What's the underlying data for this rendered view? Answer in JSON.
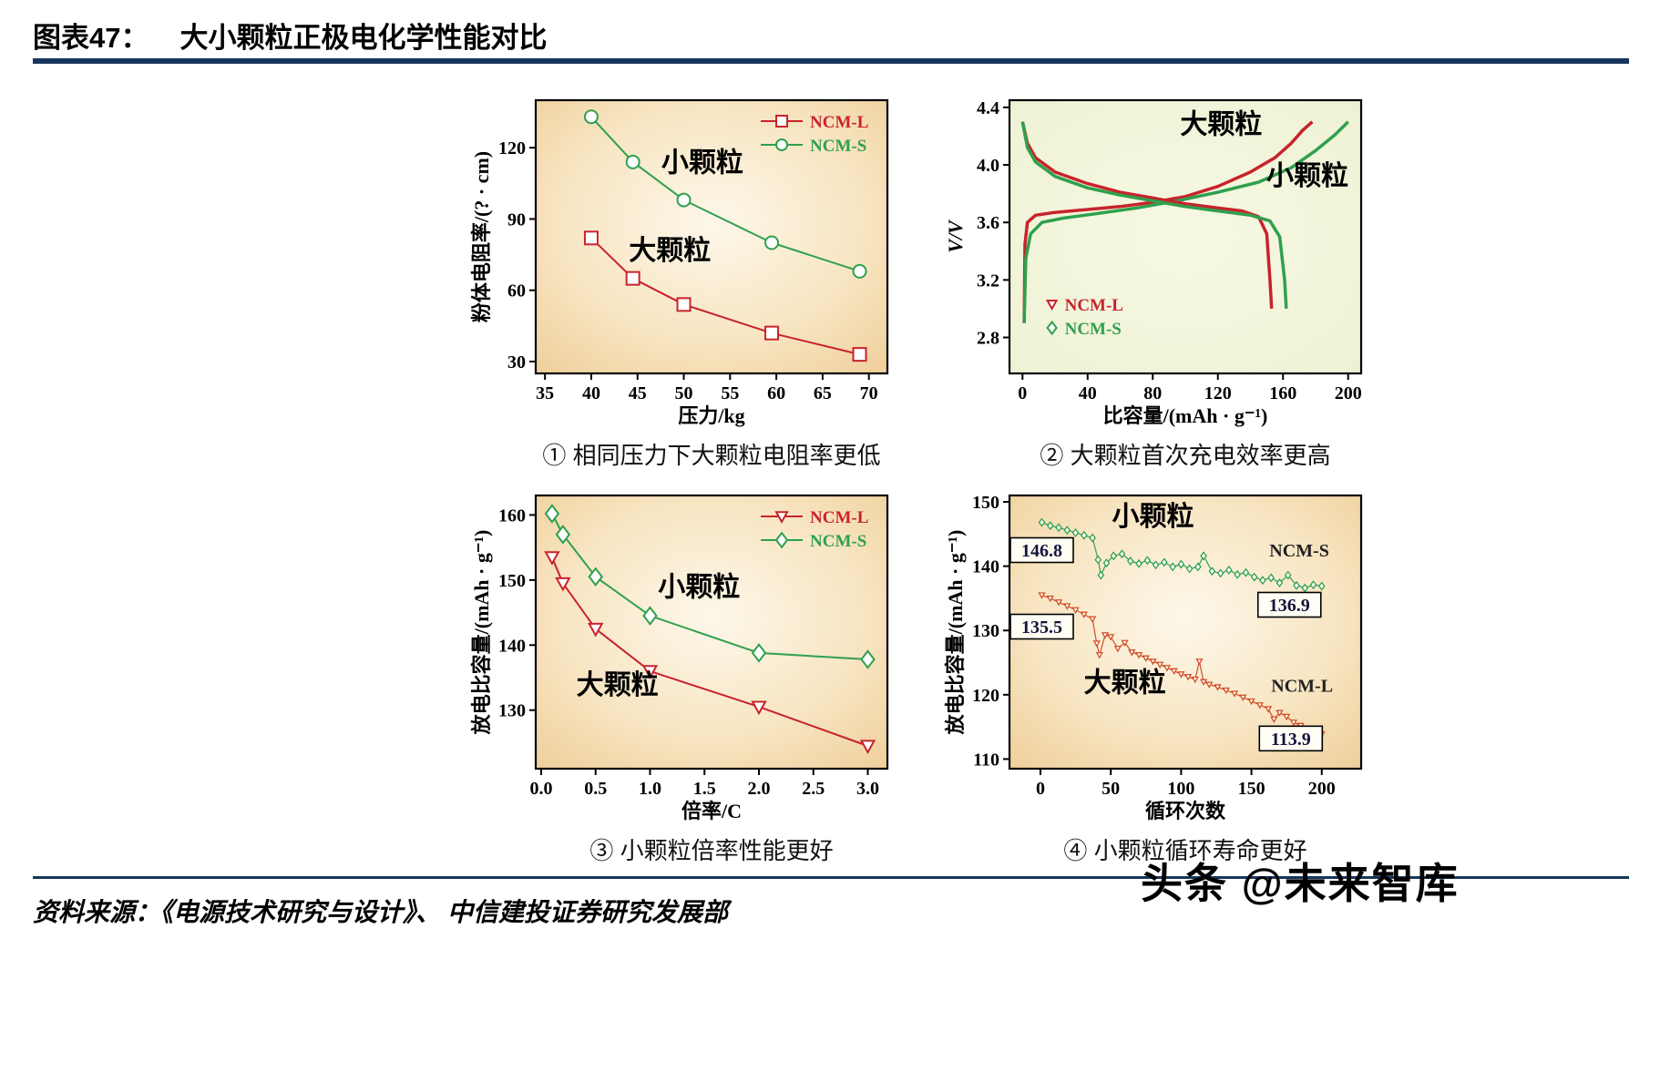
{
  "header": {
    "fig_label": "图表47：",
    "title": "大小颗粒正极电化学性能对比"
  },
  "footer": {
    "source": "资料来源：《电源技术研究与设计》、 中信建投证券研究发展部",
    "watermark_brand": "头条",
    "watermark_handle": "@未来智库"
  },
  "colors": {
    "rule": "#17365d",
    "red": "#c8232c",
    "green": "#2fa04e",
    "orange_red": "#d14f26"
  },
  "chart_data": [
    {
      "type": "line",
      "caption": "① 相同压力下大颗粒电阻率更低",
      "xlabel": "压力/kg",
      "ylabel": "粉体电阻率/(? · cm)",
      "xlim": [
        34,
        72
      ],
      "ylim": [
        25,
        140
      ],
      "xticks": [
        35,
        40,
        45,
        50,
        55,
        60,
        65,
        70
      ],
      "xtick_labels": [
        "35",
        "40",
        "45",
        "50",
        "55",
        "60",
        "65",
        "70"
      ],
      "yticks": [
        30,
        60,
        90,
        120
      ],
      "ytick_labels": [
        "30",
        "60",
        "90",
        "120"
      ],
      "bg": "peach",
      "series": [
        {
          "name": "NCM-L",
          "color": "#c8232c",
          "marker": "square",
          "ms": 7,
          "lw": 2,
          "x": [
            40,
            44.5,
            50,
            59.5,
            69
          ],
          "y": [
            82,
            65,
            54,
            42,
            33
          ]
        },
        {
          "name": "NCM-S",
          "color": "#2fa04e",
          "marker": "circle",
          "ms": 7,
          "lw": 2,
          "x": [
            40,
            44.5,
            50,
            59.5,
            69
          ],
          "y": [
            133,
            114,
            98,
            80,
            68
          ]
        }
      ],
      "annotations": [
        {
          "text": "小颗粒",
          "x": 52,
          "y": 110,
          "size": 30,
          "color": "#000",
          "font": "sans"
        },
        {
          "text": "大颗粒",
          "x": 48.5,
          "y": 73,
          "size": 30,
          "color": "#000",
          "font": "sans"
        }
      ],
      "legend": {
        "fx": 0.64,
        "fy": 0.03,
        "line": true,
        "entries": [
          {
            "label": "NCM-L",
            "color": "#c8232c",
            "marker": "square"
          },
          {
            "label": "NCM-S",
            "color": "#2fa04e",
            "marker": "circle"
          }
        ]
      }
    },
    {
      "type": "line",
      "caption": "② 大颗粒首次充电效率更高",
      "xlabel": "比容量/(mAh · g⁻¹)",
      "ylabel": "V/V",
      "ylabel_italic": true,
      "xlim": [
        -8,
        208
      ],
      "ylim": [
        2.55,
        4.45
      ],
      "xticks": [
        0,
        40,
        80,
        120,
        160,
        200
      ],
      "xtick_labels": [
        "0",
        "40",
        "80",
        "120",
        "160",
        "200"
      ],
      "yticks": [
        2.8,
        3.2,
        3.6,
        4.0,
        4.4
      ],
      "ytick_labels": [
        "2.8",
        "3.2",
        "3.6",
        "4.0",
        "4.4"
      ],
      "bg": "lime",
      "series": [
        {
          "name": "NCM-L charge",
          "color": "#c8232c",
          "marker": "none",
          "lw": 3.5,
          "x": [
            1,
            1.5,
            3,
            8,
            20,
            40,
            60,
            80,
            100,
            120,
            140,
            155,
            165,
            172,
            178
          ],
          "y": [
            2.9,
            3.45,
            3.6,
            3.65,
            3.67,
            3.69,
            3.71,
            3.74,
            3.78,
            3.85,
            3.95,
            4.05,
            4.15,
            4.24,
            4.3
          ]
        },
        {
          "name": "NCM-S charge",
          "color": "#2fa04e",
          "marker": "none",
          "lw": 3.5,
          "x": [
            1,
            2,
            5,
            12,
            25,
            45,
            70,
            95,
            120,
            145,
            165,
            180,
            192,
            200
          ],
          "y": [
            2.9,
            3.35,
            3.52,
            3.6,
            3.63,
            3.66,
            3.7,
            3.75,
            3.81,
            3.88,
            3.98,
            4.1,
            4.21,
            4.3
          ]
        },
        {
          "name": "NCM-L discharge",
          "color": "#c8232c",
          "marker": "none",
          "lw": 3.5,
          "x": [
            0,
            3,
            8,
            20,
            40,
            60,
            80,
            100,
            120,
            135,
            145,
            150,
            152,
            153
          ],
          "y": [
            4.3,
            4.15,
            4.05,
            3.95,
            3.87,
            3.81,
            3.77,
            3.73,
            3.7,
            3.68,
            3.64,
            3.52,
            3.2,
            3.0
          ]
        },
        {
          "name": "NCM-S discharge",
          "color": "#2fa04e",
          "marker": "none",
          "lw": 3.5,
          "x": [
            0,
            3,
            8,
            20,
            40,
            60,
            80,
            100,
            120,
            140,
            152,
            158,
            161,
            162
          ],
          "y": [
            4.3,
            4.12,
            4.02,
            3.92,
            3.84,
            3.79,
            3.75,
            3.71,
            3.68,
            3.65,
            3.61,
            3.5,
            3.2,
            3.0
          ]
        }
      ],
      "annotations": [
        {
          "text": "大颗粒",
          "x": 122,
          "y": 4.22,
          "size": 30,
          "color": "#000",
          "font": "sans"
        },
        {
          "text": "小颗粒",
          "x": 175,
          "y": 3.86,
          "size": 30,
          "color": "#000",
          "font": "sans"
        }
      ],
      "legend": {
        "fx": 0.1,
        "fy": 0.7,
        "line": false,
        "entries": [
          {
            "label": "NCM-L",
            "color": "#c8232c",
            "marker": "triangle-down"
          },
          {
            "label": "NCM-S",
            "color": "#2fa04e",
            "marker": "diamond"
          }
        ]
      }
    },
    {
      "type": "line",
      "caption": "③ 小颗粒倍率性能更好",
      "xlabel": "倍率/C",
      "ylabel": "放电比容量/(mAh · g⁻¹)",
      "xlim": [
        -0.05,
        3.18
      ],
      "ylim": [
        121,
        163
      ],
      "xticks": [
        0,
        0.5,
        1,
        1.5,
        2,
        2.5,
        3
      ],
      "xtick_labels": [
        "0.0",
        "0.5",
        "1.0",
        "1.5",
        "2.0",
        "2.5",
        "3.0"
      ],
      "yticks": [
        130,
        140,
        150,
        160
      ],
      "ytick_labels": [
        "130",
        "140",
        "150",
        "160"
      ],
      "bg": "peach",
      "series": [
        {
          "name": "NCM-L",
          "color": "#c8232c",
          "marker": "triangle-down",
          "ms": 7,
          "lw": 2,
          "x": [
            0.1,
            0.2,
            0.5,
            1.0,
            2.0,
            3.0
          ],
          "y": [
            153.5,
            149.5,
            142.5,
            136.0,
            130.5,
            124.5
          ]
        },
        {
          "name": "NCM-S",
          "color": "#2fa04e",
          "marker": "diamond",
          "ms": 7,
          "lw": 2,
          "x": [
            0.1,
            0.2,
            0.5,
            1.0,
            2.0,
            3.0
          ],
          "y": [
            160.2,
            157.0,
            150.5,
            144.5,
            138.8,
            137.8
          ]
        }
      ],
      "annotations": [
        {
          "text": "小颗粒",
          "x": 1.45,
          "y": 147.5,
          "size": 30,
          "color": "#000",
          "font": "sans"
        },
        {
          "text": "大颗粒",
          "x": 0.7,
          "y": 132.5,
          "size": 30,
          "color": "#000",
          "font": "sans"
        }
      ],
      "legend": {
        "fx": 0.64,
        "fy": 0.03,
        "line": true,
        "entries": [
          {
            "label": "NCM-L",
            "color": "#c8232c",
            "marker": "triangle-down"
          },
          {
            "label": "NCM-S",
            "color": "#2fa04e",
            "marker": "diamond"
          }
        ]
      }
    },
    {
      "type": "line",
      "caption": "④ 小颗粒循环寿命更好",
      "xlabel": "循环次数",
      "ylabel": "放电比容量/(mAh · g⁻¹)",
      "xlim": [
        -22,
        228
      ],
      "ylim": [
        108.5,
        151
      ],
      "xticks": [
        0,
        50,
        100,
        150,
        200
      ],
      "xtick_labels": [
        "0",
        "50",
        "100",
        "150",
        "200"
      ],
      "yticks": [
        110,
        120,
        130,
        140,
        150
      ],
      "ytick_labels": [
        "110",
        "120",
        "130",
        "140",
        "150"
      ],
      "bg": "peach",
      "series": [
        {
          "name": "NCM-S",
          "color": "#2fa04e",
          "marker": "diamond",
          "ms": 3,
          "lw": 1.2,
          "x": [
            1,
            7,
            13,
            19,
            25,
            31,
            37,
            41,
            43,
            47,
            52,
            58,
            64,
            70,
            76,
            82,
            88,
            94,
            100,
            106,
            112,
            116,
            122,
            128,
            134,
            140,
            146,
            152,
            158,
            164,
            170,
            176,
            182,
            188,
            194,
            200
          ],
          "y": [
            146.8,
            146.3,
            146.0,
            145.6,
            145.2,
            144.8,
            144.4,
            141.0,
            138.6,
            140.5,
            141.6,
            141.9,
            140.8,
            140.4,
            140.9,
            140.2,
            140.6,
            139.9,
            140.3,
            139.6,
            139.9,
            141.6,
            139.2,
            138.9,
            139.4,
            138.7,
            139.0,
            138.3,
            137.8,
            138.2,
            137.4,
            138.6,
            137.0,
            136.6,
            137.1,
            136.9
          ]
        },
        {
          "name": "NCM-L",
          "color": "#d14f26",
          "marker": "triangle-down",
          "ms": 3,
          "lw": 1.2,
          "x": [
            1,
            7,
            13,
            19,
            25,
            31,
            37,
            40,
            42,
            46,
            50,
            55,
            60,
            65,
            70,
            75,
            80,
            85,
            90,
            95,
            100,
            105,
            110,
            113,
            116,
            120,
            126,
            132,
            138,
            144,
            150,
            156,
            162,
            166,
            170,
            175,
            180,
            185,
            190,
            195,
            200
          ],
          "y": [
            135.5,
            135.0,
            134.4,
            133.8,
            133.2,
            132.5,
            131.8,
            128.0,
            126.2,
            129.3,
            129.0,
            127.2,
            128.1,
            126.6,
            126.2,
            125.7,
            125.2,
            124.7,
            124.2,
            123.7,
            123.2,
            122.8,
            122.4,
            125.2,
            122.0,
            121.6,
            121.2,
            120.7,
            120.2,
            119.6,
            119.0,
            118.4,
            117.8,
            116.2,
            117.2,
            116.6,
            115.7,
            115.2,
            114.7,
            114.2,
            113.9
          ]
        }
      ],
      "annotations": [
        {
          "text": "小颗粒",
          "x": 80,
          "y": 146.3,
          "size": 30,
          "color": "#000",
          "font": "sans"
        },
        {
          "text": "大颗粒",
          "x": 60,
          "y": 120.5,
          "size": 30,
          "color": "#000",
          "font": "sans"
        },
        {
          "text": "NCM-S",
          "x": 184,
          "y": 141.5,
          "size": 20,
          "color": "#222",
          "font": "serif"
        },
        {
          "text": "NCM-L",
          "x": 186,
          "y": 120.5,
          "size": 20,
          "color": "#222",
          "font": "serif"
        }
      ],
      "boxes": [
        {
          "text": "146.8",
          "x": 1,
          "y": 142.5
        },
        {
          "text": "135.5",
          "x": 1,
          "y": 130.6
        },
        {
          "text": "136.9",
          "x": 177,
          "y": 134.0
        },
        {
          "text": "113.9",
          "x": 178,
          "y": 113.2
        }
      ]
    }
  ]
}
